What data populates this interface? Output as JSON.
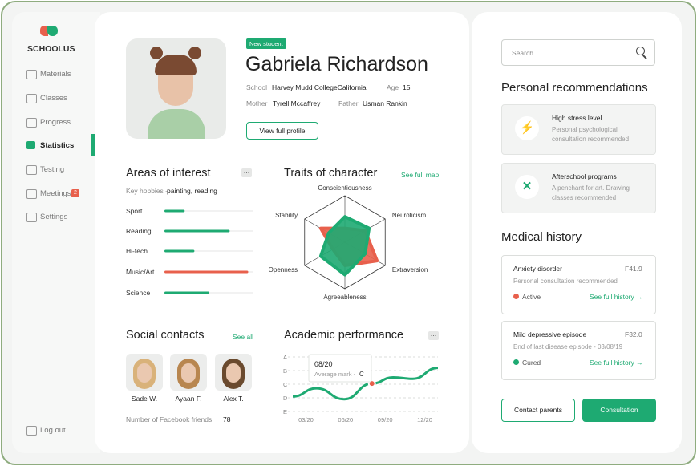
{
  "sidebar": {
    "logo": "SCHOOLUS",
    "menu": [
      {
        "label": "Materials"
      },
      {
        "label": "Classes"
      },
      {
        "label": "Progress"
      },
      {
        "label": "Statistics"
      },
      {
        "label": "Testing"
      },
      {
        "label": "Meetings",
        "badge": 2
      },
      {
        "label": "Settings"
      }
    ],
    "logout": "Log out"
  },
  "profile": {
    "tag": "New student",
    "name": "Gabriela Richardson",
    "school_label": "School",
    "school": "Harvey Mudd CollegeCalifornia",
    "age_label": "Age",
    "age": 15,
    "mother_label": "Mother",
    "mother": "Tyrell Mccaffrey",
    "father_label": "Father",
    "father": "Usman Rankin",
    "button": "View full profile"
  },
  "interests": {
    "title": "Areas of interest",
    "hobbies_label": "Key hobbies -",
    "hobbies": "painting, reading",
    "max": 100,
    "items": [
      {
        "label": "Sport",
        "value": 23,
        "color": "#1eaa72"
      },
      {
        "label": "Reading",
        "value": 74,
        "color": "#1eaa72"
      },
      {
        "label": "Hi-tech",
        "value": 34,
        "color": "#1eaa72"
      },
      {
        "label": "Music/Art",
        "value": 95,
        "color": "#e8604c"
      },
      {
        "label": "Science",
        "value": 51,
        "color": "#1eaa72"
      }
    ]
  },
  "traits": {
    "title": "Traits of character",
    "link": "See full map",
    "max": 10,
    "axes": [
      "Conscientiousness",
      "Neuroticism",
      "Extraversion",
      "Agreeableness",
      "Openness",
      "Stability"
    ],
    "series": [
      {
        "color": "#e8604c",
        "values": [
          3,
          5,
          8,
          5,
          3,
          6
        ]
      },
      {
        "color": "#1eaa72",
        "values": [
          5.5,
          6,
          5,
          7,
          6,
          4
        ]
      }
    ]
  },
  "social": {
    "title": "Social contacts",
    "link": "See all",
    "contacts": [
      "Sade W.",
      "Ayaan F.",
      "Alex T."
    ],
    "friends_label": "Number of Facebook friends",
    "friends": 78
  },
  "academic": {
    "title": "Academic performance",
    "color": "#1eaa72",
    "xlim": [
      2,
      13
    ],
    "ylim": [
      1,
      5
    ],
    "xticks": [
      {
        "value": 3,
        "label": "03/20"
      },
      {
        "value": 6,
        "label": "06/20"
      },
      {
        "value": 9,
        "label": "09/20"
      },
      {
        "value": 12,
        "label": "12/20"
      }
    ],
    "yticks": [
      {
        "value": 5,
        "label": "A"
      },
      {
        "value": 4,
        "label": "B"
      },
      {
        "value": 3,
        "label": "C"
      },
      {
        "value": 2,
        "label": "D"
      },
      {
        "value": 1,
        "label": "E"
      }
    ],
    "x": [
      2,
      3.8,
      5.9,
      8,
      9.6,
      11.1,
      13
    ],
    "values": [
      2.1,
      2.7,
      1.9,
      3.05,
      3.5,
      3.4,
      4.2
    ],
    "tooltip": {
      "point": 3,
      "date": "08/20",
      "label": "Average mark -",
      "grade": "C"
    }
  },
  "search": "Search",
  "recommendations": {
    "title": "Personal recommendations",
    "items": [
      {
        "title": "High stress level",
        "text": "Personal psychological consultation recommended"
      },
      {
        "title": "Afterschool programs",
        "text": "A penchant for art. Drawing classes recommended"
      }
    ]
  },
  "medical": {
    "title": "Medical history",
    "items": [
      {
        "name": "Anxiety disorder",
        "code": "F41.9",
        "note": "Personal consultation recommended",
        "status": "Active",
        "status_color": "#e8604c",
        "link": "See full history →"
      },
      {
        "name": "Mild depressive episode",
        "code": "F32.0",
        "note": "End of last disease episode - 03/08/19",
        "status": "Cured",
        "status_color": "#1eaa72",
        "link": "See full history →"
      }
    ]
  },
  "buttons": {
    "contact": "Contact parents",
    "consultation": "Consultation"
  }
}
